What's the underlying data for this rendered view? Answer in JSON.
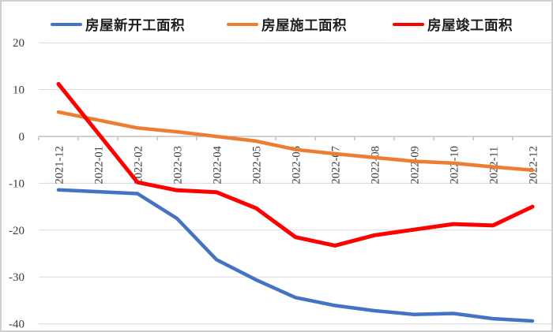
{
  "chart_data": {
    "type": "line",
    "title": "",
    "xlabel": "",
    "ylabel": "",
    "x": [
      "2021-12",
      "2022-01",
      "2022-02",
      "2022-03",
      "2022-04",
      "2022-05",
      "2022-06",
      "2022-07",
      "2022-08",
      "2022-09",
      "2022-10",
      "2022-11",
      "2022-12"
    ],
    "series": [
      {
        "name": "房屋新开工面积",
        "color": "#4472C4",
        "values": [
          -11.4,
          -11.8,
          -12.2,
          -17.5,
          -26.3,
          -30.6,
          -34.4,
          -36.1,
          -37.2,
          -38.0,
          -37.8,
          -38.9,
          -39.4
        ]
      },
      {
        "name": "房屋施工面积",
        "color": "#ED7D31",
        "values": [
          5.2,
          3.5,
          1.8,
          1.0,
          0.0,
          -1.0,
          -2.8,
          -3.7,
          -4.5,
          -5.3,
          -5.7,
          -6.5,
          -7.2
        ]
      },
      {
        "name": "房屋竣工面积",
        "color": "#FF0000",
        "values": [
          11.2,
          0.7,
          -9.8,
          -11.5,
          -11.9,
          -15.3,
          -21.5,
          -23.3,
          -21.1,
          -19.9,
          -18.7,
          -19.0,
          -15.0
        ]
      }
    ],
    "yticks": [
      "20",
      "10",
      "0",
      "-10",
      "-20",
      "-30",
      "-40"
    ],
    "ylim": [
      -40,
      20
    ],
    "grid": true,
    "legend_position": "top"
  },
  "style": {
    "grid_color": "#d9d9d9",
    "axis_color": "#b7b7b7",
    "tick_label_color": "#3d3d3d",
    "frame_border_color": "#cfcfcf",
    "background_color": "#ffffff"
  }
}
